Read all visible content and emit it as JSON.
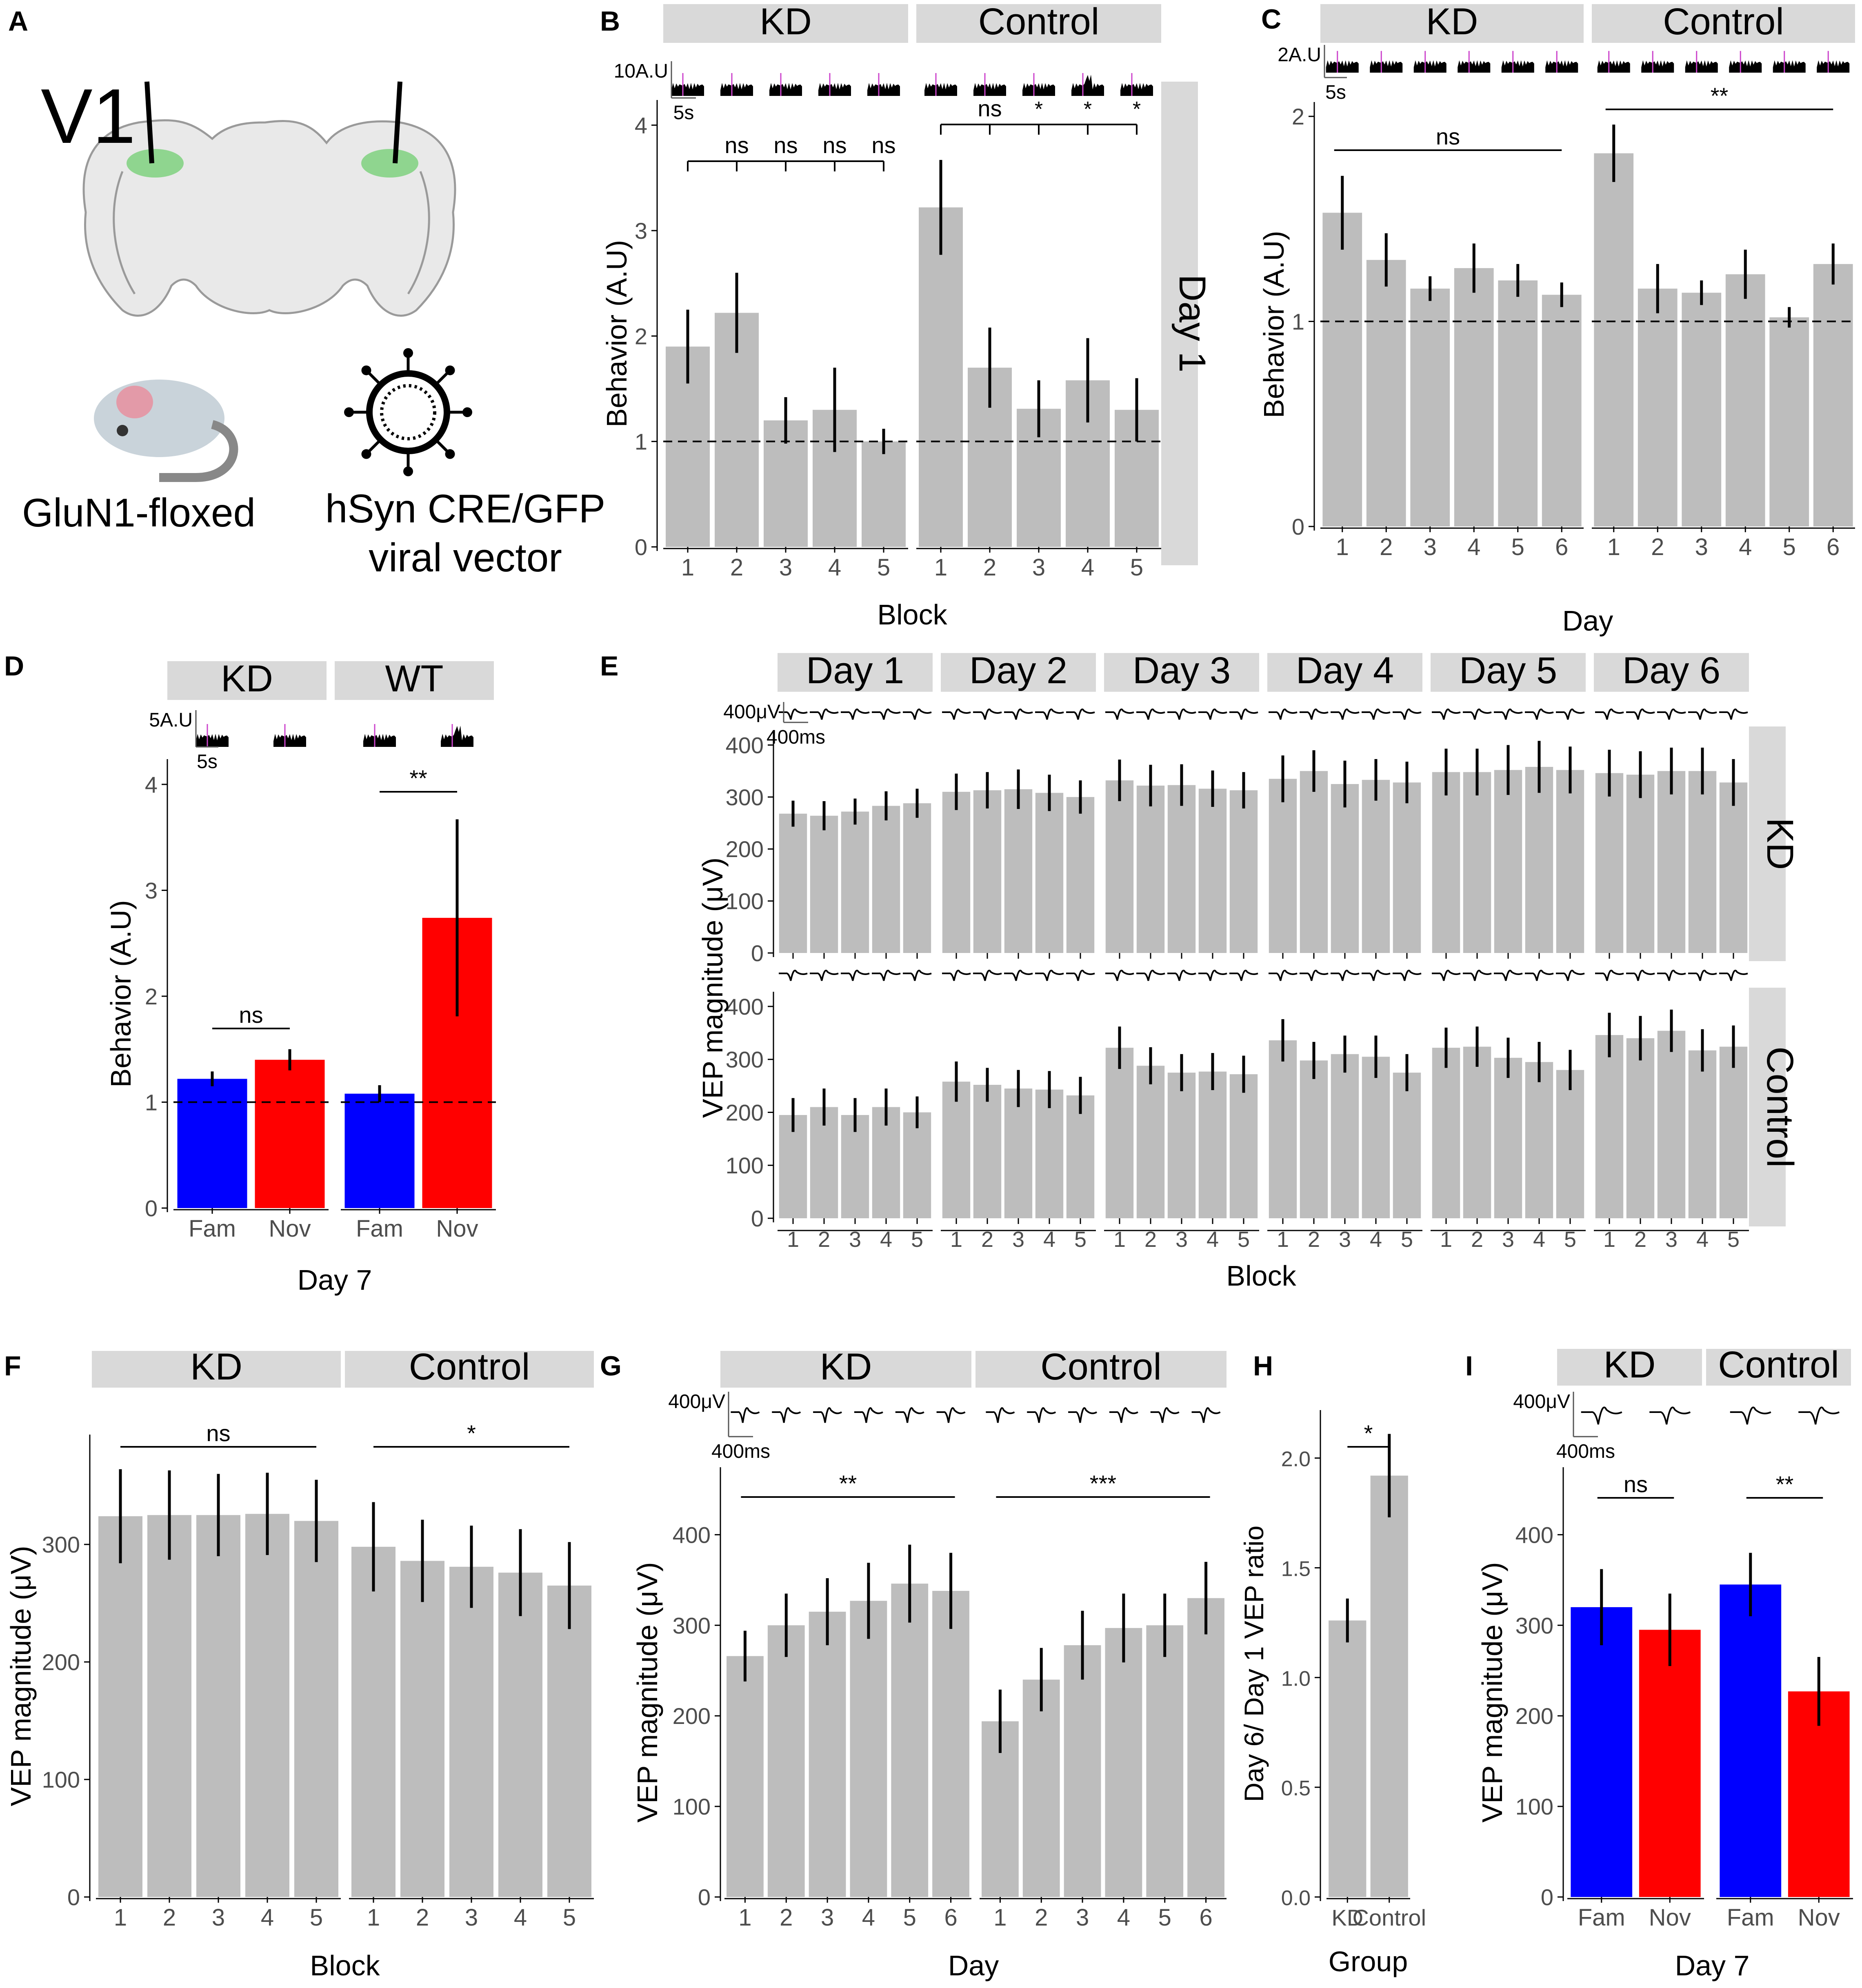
{
  "figure": {
    "panel_labels": [
      "A",
      "B",
      "C",
      "D",
      "E",
      "F",
      "G",
      "H",
      "I"
    ],
    "panel_a": {
      "region_label": "V1",
      "mouse_label": "GluN1-floxed",
      "vector_label_line1": "hSyn CRE/GFP",
      "vector_label_line2": "viral vector"
    },
    "colors": {
      "bar": "#bdbdbd",
      "strip": "#d9d9d9",
      "fam": "#0000ff",
      "nov": "#ff0000",
      "marker": "#cc44cc"
    }
  },
  "chart_data": [
    {
      "panel": "B",
      "type": "bar",
      "ylabel": "Behavior (A.U)",
      "xlabel": "Block",
      "ylim": [
        0,
        4.2
      ],
      "yticks": [
        0,
        1,
        2,
        3,
        4
      ],
      "ref_line": 1,
      "side_strip": "Day 1",
      "scale_y": "10A.U",
      "scale_x": "5s",
      "facets": [
        {
          "name": "KD",
          "categories": [
            "1",
            "2",
            "3",
            "4",
            "5"
          ],
          "values": [
            1.9,
            2.22,
            1.2,
            1.3,
            1.0
          ],
          "errors": [
            0.35,
            0.38,
            0.22,
            0.4,
            0.12
          ],
          "bracket_tests": [
            "ns",
            "ns",
            "ns",
            "ns"
          ]
        },
        {
          "name": "Control",
          "categories": [
            "1",
            "2",
            "3",
            "4",
            "5"
          ],
          "values": [
            3.22,
            1.7,
            1.31,
            1.58,
            1.3
          ],
          "errors": [
            0.45,
            0.38,
            0.27,
            0.4,
            0.3
          ],
          "bracket_tests": [
            "ns",
            "*",
            "*",
            "*"
          ]
        }
      ]
    },
    {
      "panel": "C",
      "type": "bar",
      "ylabel": "Behavior (A.U)",
      "xlabel": "Day",
      "ylim": [
        0,
        2.05
      ],
      "yticks": [
        0,
        1,
        2
      ],
      "ref_line": 1,
      "scale_y": "2A.U",
      "scale_x": "5s",
      "facets": [
        {
          "name": "KD",
          "categories": [
            "1",
            "2",
            "3",
            "4",
            "5",
            "6"
          ],
          "values": [
            1.53,
            1.3,
            1.16,
            1.26,
            1.2,
            1.13
          ],
          "errors": [
            0.18,
            0.13,
            0.06,
            0.12,
            0.08,
            0.06
          ],
          "sig": "ns"
        },
        {
          "name": "Control",
          "categories": [
            "1",
            "2",
            "3",
            "4",
            "5",
            "6"
          ],
          "values": [
            1.82,
            1.16,
            1.14,
            1.23,
            1.02,
            1.28
          ],
          "errors": [
            0.14,
            0.12,
            0.06,
            0.12,
            0.05,
            0.1
          ],
          "sig": "**"
        }
      ]
    },
    {
      "panel": "D",
      "type": "bar",
      "ylabel": "Behavior (A.U)",
      "xlabel": "Day 7",
      "ylim": [
        0,
        4.2
      ],
      "yticks": [
        0,
        1,
        2,
        3,
        4
      ],
      "ref_line": 1,
      "scale_y": "5A.U",
      "scale_x": "5s",
      "facets": [
        {
          "name": "KD",
          "categories": [
            "Fam",
            "Nov"
          ],
          "values": [
            1.22,
            1.4
          ],
          "errors": [
            0.07,
            0.1
          ],
          "sig": "ns"
        },
        {
          "name": "WT",
          "categories": [
            "Fam",
            "Nov"
          ],
          "values": [
            1.08,
            2.74
          ],
          "errors": [
            0.08,
            0.93
          ],
          "sig": "**"
        }
      ]
    },
    {
      "panel": "E",
      "type": "bar",
      "ylabel": "VEP magnitude (μV)",
      "xlabel": "Block",
      "ylim": [
        0,
        420
      ],
      "yticks": [
        0,
        100,
        200,
        300,
        400
      ],
      "scale_y": "400μV",
      "scale_x": "400ms",
      "facets": [
        "Day 1",
        "Day 2",
        "Day 3",
        "Day 4",
        "Day 5",
        "Day 6"
      ],
      "categories": [
        "1",
        "2",
        "3",
        "4",
        "5"
      ],
      "rows": [
        {
          "name": "KD",
          "values": [
            [
              268,
              264,
              272,
              283,
              288
            ],
            [
              310,
              313,
              315,
              308,
              300
            ],
            [
              332,
              322,
              323,
              316,
              313
            ],
            [
              335,
              350,
              325,
              333,
              328
            ],
            [
              348,
              348,
              352,
              358,
              352
            ],
            [
              346,
              343,
              350,
              350,
              328
            ]
          ],
          "errors": [
            [
              25,
              28,
              25,
              28,
              28
            ],
            [
              35,
              35,
              38,
              35,
              32
            ],
            [
              40,
              40,
              40,
              35,
              35
            ],
            [
              45,
              40,
              45,
              40,
              40
            ],
            [
              45,
              45,
              48,
              50,
              45
            ],
            [
              45,
              45,
              45,
              45,
              45
            ]
          ]
        },
        {
          "name": "Control",
          "values": [
            [
              195,
              210,
              195,
              210,
              200
            ],
            [
              258,
              252,
              245,
              243,
              232
            ],
            [
              322,
              288,
              275,
              277,
              272
            ],
            [
              336,
              298,
              310,
              305,
              275
            ],
            [
              322,
              324,
              303,
              295,
              280
            ],
            [
              346,
              340,
              354,
              317,
              324
            ]
          ],
          "errors": [
            [
              32,
              35,
              32,
              35,
              30
            ],
            [
              38,
              32,
              35,
              35,
              35
            ],
            [
              40,
              35,
              35,
              35,
              35
            ],
            [
              40,
              35,
              35,
              40,
              35
            ],
            [
              38,
              38,
              38,
              38,
              38
            ],
            [
              42,
              42,
              40,
              40,
              40
            ]
          ]
        }
      ]
    },
    {
      "panel": "F",
      "type": "bar",
      "ylabel": "VEP magnitude (μV)",
      "xlabel": "Block",
      "ylim": [
        0,
        390
      ],
      "yticks": [
        0,
        100,
        200,
        300
      ],
      "facets": [
        {
          "name": "KD",
          "categories": [
            "1",
            "2",
            "3",
            "4",
            "5"
          ],
          "values": [
            324,
            325,
            325,
            326,
            320
          ],
          "errors": [
            40,
            38,
            35,
            35,
            35
          ],
          "sig": "ns"
        },
        {
          "name": "Control",
          "categories": [
            "1",
            "2",
            "3",
            "4",
            "5"
          ],
          "values": [
            298,
            286,
            281,
            276,
            265
          ],
          "errors": [
            38,
            35,
            35,
            37,
            37
          ],
          "sig": "*"
        }
      ]
    },
    {
      "panel": "G",
      "type": "bar",
      "ylabel": "VEP magnitude (μV)",
      "xlabel": "Day",
      "ylim": [
        0,
        470
      ],
      "yticks": [
        0,
        100,
        200,
        300,
        400
      ],
      "scale_y": "400μV",
      "scale_x": "400ms",
      "facets": [
        {
          "name": "KD",
          "categories": [
            "1",
            "2",
            "3",
            "4",
            "5",
            "6"
          ],
          "values": [
            266,
            300,
            315,
            327,
            346,
            338
          ],
          "errors": [
            28,
            35,
            37,
            42,
            43,
            42
          ],
          "sig": "**"
        },
        {
          "name": "Control",
          "categories": [
            "1",
            "2",
            "3",
            "4",
            "5",
            "6"
          ],
          "values": [
            194,
            240,
            278,
            297,
            300,
            330
          ],
          "errors": [
            35,
            35,
            38,
            38,
            35,
            40
          ],
          "sig": "***"
        }
      ]
    },
    {
      "panel": "H",
      "type": "bar",
      "ylabel": "Day 6/ Day 1 VEP ratio",
      "xlabel": "Group",
      "ylim": [
        0,
        2.2
      ],
      "yticks": [
        "0.0",
        "0.5",
        "1.0",
        "1.5",
        "2.0"
      ],
      "categories": [
        "KD",
        "Control"
      ],
      "values": [
        1.26,
        1.92
      ],
      "errors": [
        0.1,
        0.19
      ],
      "sig": "*"
    },
    {
      "panel": "I",
      "type": "bar",
      "ylabel": "VEP magnitude (μV)",
      "xlabel": "Day 7",
      "ylim": [
        0,
        470
      ],
      "yticks": [
        0,
        100,
        200,
        300,
        400
      ],
      "scale_y": "400μV",
      "scale_x": "400ms",
      "facets": [
        {
          "name": "KD",
          "categories": [
            "Fam",
            "Nov"
          ],
          "values": [
            320,
            295
          ],
          "errors": [
            42,
            40
          ],
          "sig": "ns"
        },
        {
          "name": "Control",
          "categories": [
            "Fam",
            "Nov"
          ],
          "values": [
            345,
            227
          ],
          "errors": [
            35,
            38
          ],
          "sig": "**"
        }
      ]
    }
  ]
}
